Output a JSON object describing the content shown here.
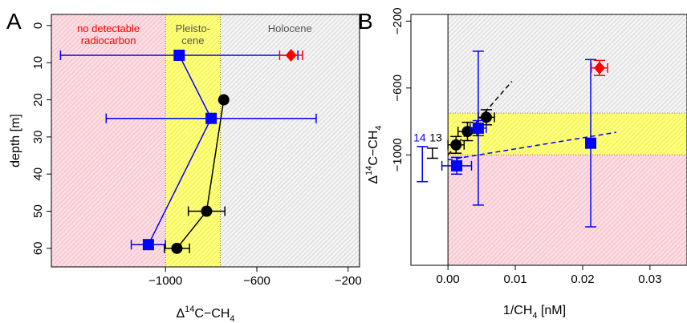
{
  "chart_data": [
    {
      "panel": "A",
      "type": "scatter",
      "xlabel_main": "Δ",
      "xlabel_sup": "14",
      "xlabel_rest": "C−CH",
      "xlabel_sub": "4",
      "ylabel": "depth [m]",
      "xlim": [
        -1500,
        -150
      ],
      "ylim": [
        65,
        -3
      ],
      "y_reversed": true,
      "xticks": [
        -1000,
        -600,
        -200
      ],
      "xtick_labels": [
        "−1000",
        "−600",
        "−200"
      ],
      "yticks": [
        0,
        10,
        20,
        30,
        40,
        50,
        60
      ],
      "ytick_labels": [
        "0",
        "10",
        "20",
        "30",
        "40",
        "50",
        "60"
      ],
      "regions": [
        {
          "label": "no detectable radiocarbon",
          "lines": [
            "no detectable",
            "radiocarbon"
          ],
          "from": -1500,
          "to": -1000,
          "color": "#f5b8c4",
          "label_color": "#ff0000"
        },
        {
          "label": "Pleistocene",
          "lines": [
            "Pleisto-",
            "cene"
          ],
          "from": -1000,
          "to": -760,
          "color": "#ffff66",
          "label_color": "#555555"
        },
        {
          "label": "Holocene",
          "lines": [
            "Holocene"
          ],
          "from": -760,
          "to": -150,
          "color": "#cfcfcf",
          "label_color": "#555555"
        }
      ],
      "series": [
        {
          "marker": "circle",
          "color": "#000000",
          "connected": true,
          "points": [
            {
              "x": -745,
              "y": 20,
              "xerr": 0
            },
            {
              "x": -820,
              "y": 50,
              "xerr": 80
            },
            {
              "x": -950,
              "y": 60,
              "xerr": 55
            }
          ]
        },
        {
          "marker": "square",
          "color": "#0000ff",
          "connected": true,
          "points": [
            {
              "x": -940,
              "y": 8,
              "xerr": 520
            },
            {
              "x": -800,
              "y": 25,
              "xerr": 460
            },
            {
              "x": -1075,
              "y": 59,
              "xerr": 75
            }
          ]
        },
        {
          "marker": "diamond",
          "color": "#ff0000",
          "connected": false,
          "points": [
            {
              "x": -450,
              "y": 8,
              "xerr": 50
            }
          ]
        }
      ]
    },
    {
      "panel": "B",
      "type": "scatter",
      "xlabel": "1/CH",
      "xlabel_sub": "4",
      "xlabel_rest": " [nM]",
      "ylabel_main": "Δ",
      "ylabel_sup": "14",
      "ylabel_rest": "C−CH",
      "ylabel_sub": "4",
      "xlim": [
        -0.0055,
        0.0355
      ],
      "ylim": [
        -1660,
        -160
      ],
      "xticks": [
        0.0,
        0.01,
        0.02,
        0.03
      ],
      "xtick_labels": [
        "0.00",
        "0.01",
        "0.02",
        "0.03"
      ],
      "yticks": [
        -200,
        -600,
        -1000
      ],
      "ytick_labels": [
        "−200",
        "−600",
        "−1000"
      ],
      "regions": [
        {
          "from": -160,
          "to": -750,
          "color": "#cfcfcf"
        },
        {
          "from": -750,
          "to": -1000,
          "color": "#ffff66"
        },
        {
          "from": -1000,
          "to": -1660,
          "color": "#f5b8c4"
        }
      ],
      "vline_x": 0,
      "annotations": [
        {
          "text": "14",
          "color": "#0000ff",
          "x": -0.0042,
          "y": -920
        },
        {
          "text": "13",
          "color": "#000000",
          "x": -0.0018,
          "y": -920
        }
      ],
      "side_errorbars": [
        {
          "x": -0.0038,
          "ymin": -1160,
          "ymax": -950,
          "color": "#0000ff"
        },
        {
          "x": -0.0023,
          "ymin": -1020,
          "ymax": -960,
          "color": "#000000"
        }
      ],
      "trendlines": [
        {
          "color": "#000000",
          "x0": 0.0,
          "y0": -1000,
          "x1": 0.0095,
          "y1": -560
        },
        {
          "color": "#0000ff",
          "x0": 0.0,
          "y0": -1030,
          "x1": 0.025,
          "y1": -865
        }
      ],
      "series": [
        {
          "marker": "circle",
          "color": "#000000",
          "points": [
            {
              "x": 0.0012,
              "y": -940,
              "xerr": 0.0012,
              "yerr": 50
            },
            {
              "x": 0.0029,
              "y": -860,
              "xerr": 0.0014,
              "yerr": 55
            },
            {
              "x": 0.0057,
              "y": -775,
              "xerr": 0.0012,
              "yerr": 45
            }
          ]
        },
        {
          "marker": "square",
          "color": "#0000ff",
          "points": [
            {
              "x": 0.0013,
              "y": -1065,
              "xerr": 0.0022,
              "yerr": 50
            },
            {
              "x": 0.0045,
              "y": -840,
              "xerr": 0.0012,
              "yerr": 45
            },
            {
              "x": 0.0045,
              "y": -840,
              "xerr": 0,
              "yerr": 460,
              "bar_only": true
            },
            {
              "x": 0.0212,
              "y": -930,
              "xerr": 0,
              "yerr": 500
            }
          ]
        },
        {
          "marker": "diamond",
          "color": "#ff0000",
          "points": [
            {
              "x": 0.0225,
              "y": -480,
              "xerr": 0.0012,
              "yerr": 45
            }
          ]
        }
      ]
    }
  ]
}
